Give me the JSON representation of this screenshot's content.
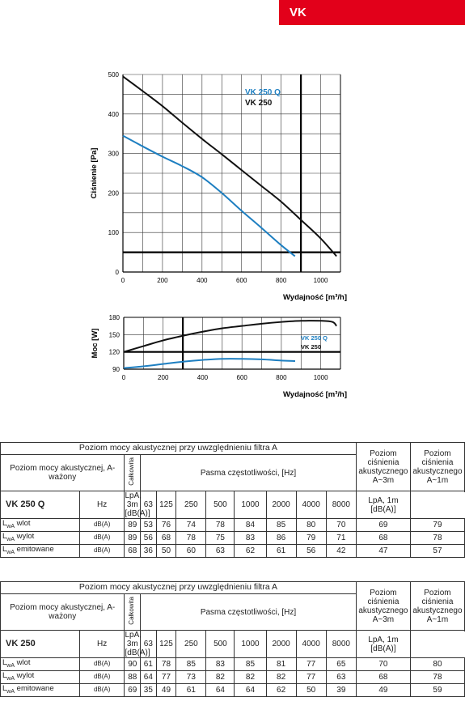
{
  "badge": "VK",
  "chart_data": [
    {
      "type": "line",
      "ylabel": "Ciśnienie [Pa]",
      "xlabel": "Wydajność [m³/h]",
      "xlim": [
        0,
        1100
      ],
      "ylim": [
        0,
        500
      ],
      "xticks": [
        0,
        200,
        400,
        600,
        800,
        1000
      ],
      "yticks": [
        0,
        100,
        200,
        300,
        400,
        500
      ],
      "legend": "top-right",
      "series": [
        {
          "name": "VK 250 Q",
          "color": "#1e7fc1",
          "x": [
            0,
            100,
            200,
            300,
            400,
            500,
            600,
            700,
            800,
            870
          ],
          "y": [
            345,
            318,
            292,
            268,
            240,
            200,
            155,
            112,
            68,
            40
          ]
        },
        {
          "name": "VK 250",
          "color": "#111111",
          "x": [
            0,
            100,
            200,
            300,
            400,
            500,
            600,
            700,
            800,
            900,
            1000,
            1080
          ],
          "y": [
            495,
            458,
            420,
            378,
            337,
            298,
            258,
            218,
            178,
            132,
            85,
            40
          ]
        }
      ],
      "ref_lines": {
        "x": 900,
        "y": 50
      }
    },
    {
      "type": "line",
      "ylabel": "Moc [W]",
      "xlabel": "Wydajność [m³/h]",
      "xlim": [
        0,
        1100
      ],
      "ylim": [
        90,
        180
      ],
      "xticks": [
        0,
        200,
        400,
        600,
        800,
        1000
      ],
      "yticks": [
        90,
        120,
        150,
        180
      ],
      "legend": "right",
      "series": [
        {
          "name": "VK 250 Q",
          "color": "#1e7fc1",
          "x": [
            0,
            100,
            200,
            300,
            400,
            500,
            600,
            700,
            800,
            870
          ],
          "y": [
            92,
            95,
            99,
            103,
            106,
            108,
            108,
            107,
            105,
            104
          ]
        },
        {
          "name": "VK 250",
          "color": "#111111",
          "x": [
            0,
            100,
            200,
            300,
            400,
            500,
            600,
            700,
            800,
            900,
            1000,
            1060,
            1080
          ],
          "y": [
            120,
            130,
            140,
            148,
            155,
            161,
            165,
            169,
            172,
            174,
            174,
            172,
            165
          ]
        }
      ],
      "ref_lines": {
        "x": 300,
        "y": 120
      }
    }
  ],
  "tables": [
    {
      "top_title": "Poziom mocy akustycznej przy uwzględnieniu filtra A",
      "row_title": "Poziom mocy akustycznej, A-ważony",
      "total_label": "Całkowita",
      "bands_label": "Pasma częstotliwości, [Hz]",
      "spl3_label": "Poziom ciśnienia akustycznego A~3m",
      "spl1_label": "Poziom ciśnienia akustycznego A~1m",
      "model": "VK 250 Q",
      "hz": "Hz",
      "bands": [
        "63",
        "125",
        "250",
        "500",
        "1000",
        "2000",
        "4000",
        "8000"
      ],
      "spl3_unit": "LpA, 3m [dB(A)]",
      "spl1_unit": "LpA, 1m [dB(A)]",
      "rows": [
        {
          "label": "wlot",
          "unit": "dB(A)",
          "total": "89",
          "values": [
            "53",
            "76",
            "74",
            "78",
            "84",
            "85",
            "80",
            "70"
          ],
          "spl3": "69",
          "spl1": "79"
        },
        {
          "label": "wylot",
          "unit": "dB(A)",
          "total": "89",
          "values": [
            "56",
            "68",
            "78",
            "75",
            "83",
            "86",
            "79",
            "71"
          ],
          "spl3": "68",
          "spl1": "78"
        },
        {
          "label": "emitowane",
          "unit": "dB(A)",
          "total": "68",
          "values": [
            "36",
            "50",
            "60",
            "63",
            "62",
            "61",
            "56",
            "42"
          ],
          "spl3": "47",
          "spl1": "57"
        }
      ]
    },
    {
      "top_title": "Poziom mocy akustycznej przy uwzględnieniu filtra A",
      "row_title": "Poziom mocy akustycznej, A-ważony",
      "total_label": "Całkowita",
      "bands_label": "Pasma częstotliwości, [Hz]",
      "spl3_label": "Poziom ciśnienia akustycznego A~3m",
      "spl1_label": "Poziom ciśnienia akustycznego A~1m",
      "model": "VK 250",
      "hz": "Hz",
      "bands": [
        "63",
        "125",
        "250",
        "500",
        "1000",
        "2000",
        "4000",
        "8000"
      ],
      "spl3_unit": "LpA, 3m [dB(A)]",
      "spl1_unit": "LpA, 1m [dB(A)]",
      "rows": [
        {
          "label": "wlot",
          "unit": "dB(A)",
          "total": "90",
          "values": [
            "61",
            "78",
            "85",
            "83",
            "85",
            "81",
            "77",
            "65"
          ],
          "spl3": "70",
          "spl1": "80"
        },
        {
          "label": "wylot",
          "unit": "dB(A)",
          "total": "88",
          "values": [
            "64",
            "77",
            "73",
            "82",
            "82",
            "82",
            "77",
            "63"
          ],
          "spl3": "68",
          "spl1": "78"
        },
        {
          "label": "emitowane",
          "unit": "dB(A)",
          "total": "69",
          "values": [
            "35",
            "49",
            "61",
            "64",
            "64",
            "62",
            "50",
            "39"
          ],
          "spl3": "49",
          "spl1": "59"
        }
      ]
    }
  ]
}
